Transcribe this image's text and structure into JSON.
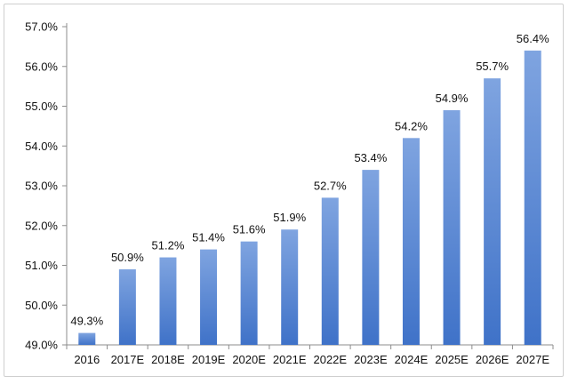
{
  "chart_data": {
    "type": "bar",
    "title": "",
    "xlabel": "",
    "ylabel": "",
    "categories": [
      "2016",
      "2017E",
      "2018E",
      "2019E",
      "2020E",
      "2021E",
      "2022E",
      "2023E",
      "2024E",
      "2025E",
      "2026E",
      "2027E"
    ],
    "values": [
      49.3,
      50.9,
      51.2,
      51.4,
      51.6,
      51.9,
      52.7,
      53.4,
      54.2,
      54.9,
      55.7,
      56.4
    ],
    "data_labels": [
      "49.3%",
      "50.9%",
      "51.2%",
      "51.4%",
      "51.6%",
      "51.9%",
      "52.7%",
      "53.4%",
      "54.2%",
      "54.9%",
      "55.7%",
      "56.4%"
    ],
    "ylim": [
      49.0,
      57.0
    ],
    "y_ticks": [
      49.0,
      50.0,
      51.0,
      52.0,
      53.0,
      54.0,
      55.0,
      56.0,
      57.0
    ],
    "y_tick_labels": [
      "49.0%",
      "50.0%",
      "51.0%",
      "52.0%",
      "53.0%",
      "54.0%",
      "55.0%",
      "56.0%",
      "57.0%"
    ],
    "grid": false,
    "legend": "none",
    "colors": {
      "bar_top": "#7fa4e0",
      "bar_bottom": "#3f72c8",
      "axis": "#8c8c8c",
      "text": "#111111"
    }
  }
}
